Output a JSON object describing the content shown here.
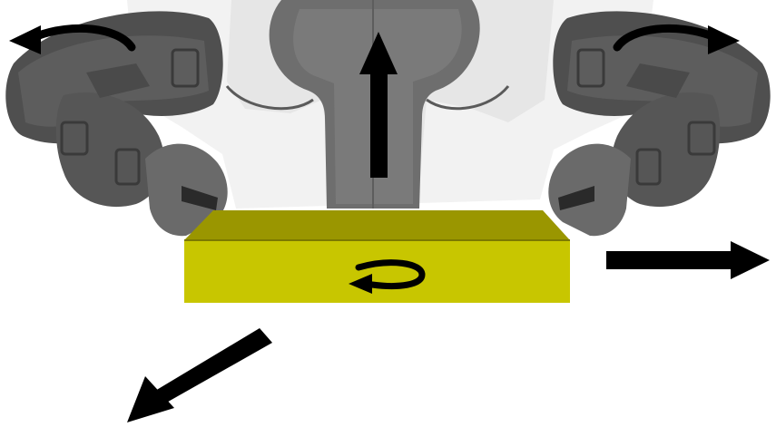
{
  "scene": {
    "description_visible_text": "",
    "object": "yellow-box",
    "robot": "dual-arm-robot",
    "motions": [
      {
        "name": "lift",
        "kind": "translation",
        "direction": "up"
      },
      {
        "name": "left-wrist-rotation",
        "kind": "rotation",
        "direction": "counterclockwise"
      },
      {
        "name": "right-wrist-rotation",
        "kind": "rotation",
        "direction": "clockwise"
      },
      {
        "name": "box-yaw-rotation",
        "kind": "rotation",
        "direction": "clockwise"
      },
      {
        "name": "translate-right",
        "kind": "translation",
        "direction": "right"
      },
      {
        "name": "translate-forward-left",
        "kind": "translation",
        "direction": "down-left"
      }
    ]
  },
  "colors": {
    "box_top": "#9a9600",
    "box_front": "#c8c600",
    "box_edge": "#7c7900",
    "robot_dark": "#4a4a4a",
    "robot_mid": "#6e6e6e",
    "robot_light": "#8c8c8c",
    "torso": "#d8d8d8",
    "head": "#6d6d6d",
    "arrow": "#000000"
  }
}
